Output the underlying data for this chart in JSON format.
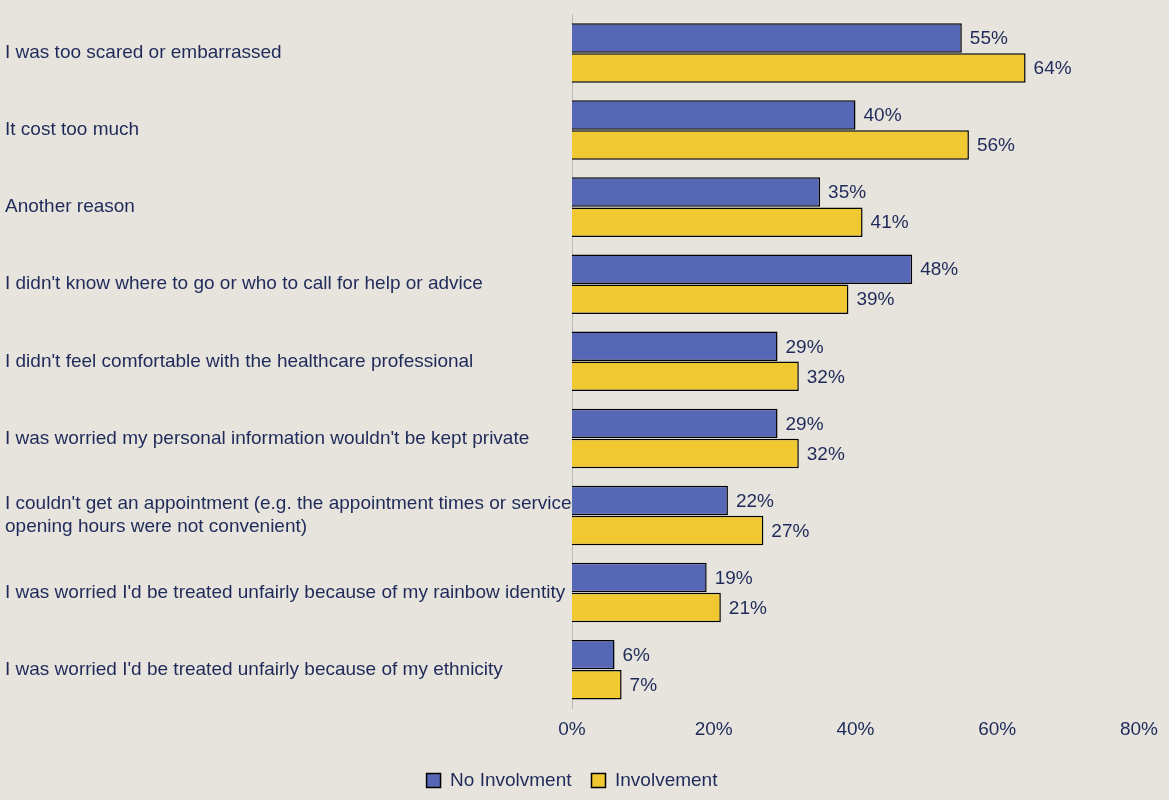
{
  "chart_data": {
    "type": "bar",
    "orientation": "horizontal",
    "categories": [
      "I was too scared or embarrassed",
      "It cost too much",
      "Another reason",
      "I didn't know where to go or who to call for help or advice",
      "I didn't feel comfortable with the healthcare professional",
      "I was worried my personal information wouldn't be kept private",
      "I couldn't get an appointment (e.g. the appointment times or service opening hours were not convenient)",
      "I was worried I'd be treated unfairly because of my rainbow identity",
      "I was worried I'd be treated unfairly because of my ethnicity"
    ],
    "series": [
      {
        "name": "No Involvment",
        "color": "#5668b5",
        "values": [
          55,
          40,
          35,
          48,
          29,
          29,
          22,
          19,
          6
        ],
        "value_labels": [
          "55%",
          "40%",
          "35%",
          "48%",
          "29%",
          "29%",
          "22%",
          "19%",
          "6%"
        ]
      },
      {
        "name": "Involvement",
        "color": "#f0c832",
        "values": [
          64,
          56,
          41,
          39,
          32,
          32,
          27,
          21,
          7
        ],
        "value_labels": [
          "64%",
          "56%",
          "41%",
          "39%",
          "32%",
          "32%",
          "27%",
          "21%",
          "7%"
        ]
      }
    ],
    "xlim": [
      0,
      80
    ],
    "xticks": [
      {
        "value": 0,
        "label": "0%"
      },
      {
        "value": 20,
        "label": "20%"
      },
      {
        "value": 40,
        "label": "40%"
      },
      {
        "value": 60,
        "label": "60%"
      },
      {
        "value": 80,
        "label": "80%"
      }
    ],
    "grid": false,
    "legend": "bottom"
  }
}
